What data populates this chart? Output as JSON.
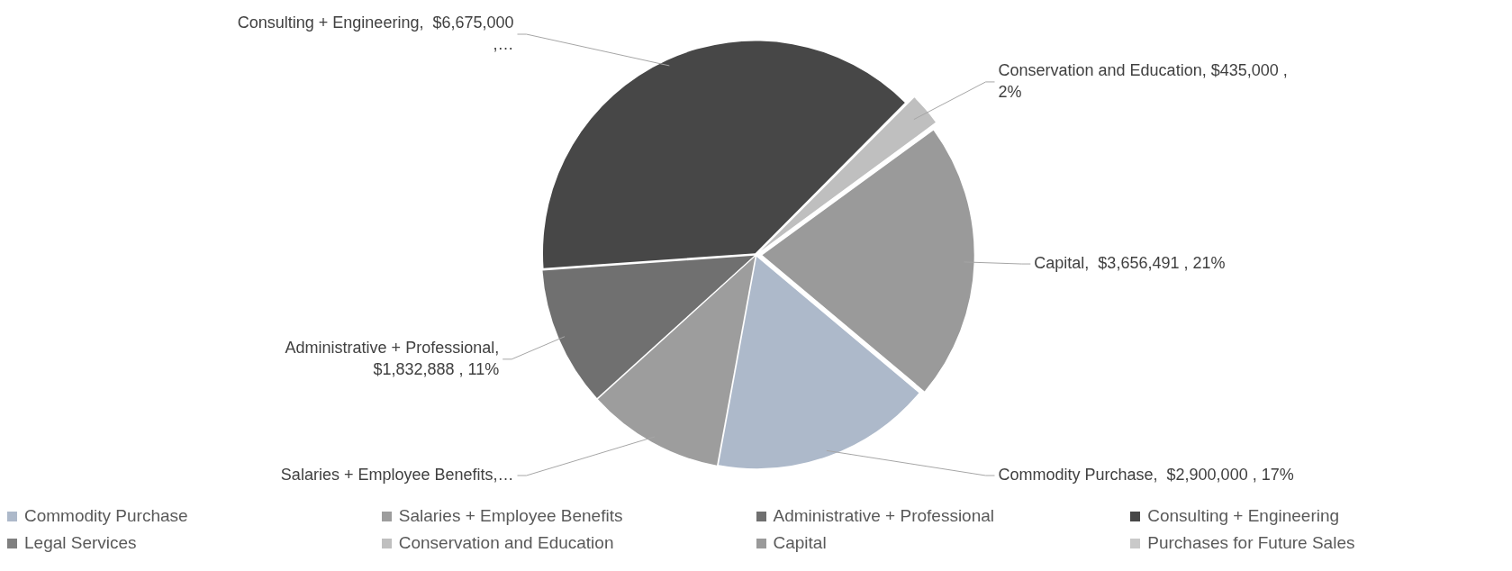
{
  "chart_data": {
    "type": "pie",
    "categories": [
      "Commodity Purchase",
      "Salaries + Employee Benefits",
      "Administrative + Professional",
      "Consulting + Engineering",
      "Legal Services",
      "Conservation and Education",
      "Capital",
      "Purchases for Future Sales"
    ],
    "values": [
      2900000,
      1800000,
      1832888,
      6675000,
      0,
      435000,
      3656491,
      0
    ],
    "colors": [
      "#adb9ca",
      "#9d9d9d",
      "#707070",
      "#474747",
      "#808080",
      "#bfbfbf",
      "#9a9a9a",
      "#c9c9c9"
    ],
    "value_labels": [
      "Commodity Purchase,  $2,900,000 , 17%",
      "Salaries + Employee Benefits,…",
      "Administrative + Professional, $1,832,888 , 11%",
      "Consulting + Engineering,  $6,675,000 ,…",
      null,
      "Conservation and Education, $435,000 , 2%",
      "Capital,  $3,656,491 , 21%",
      null
    ],
    "legend": "bottom"
  }
}
